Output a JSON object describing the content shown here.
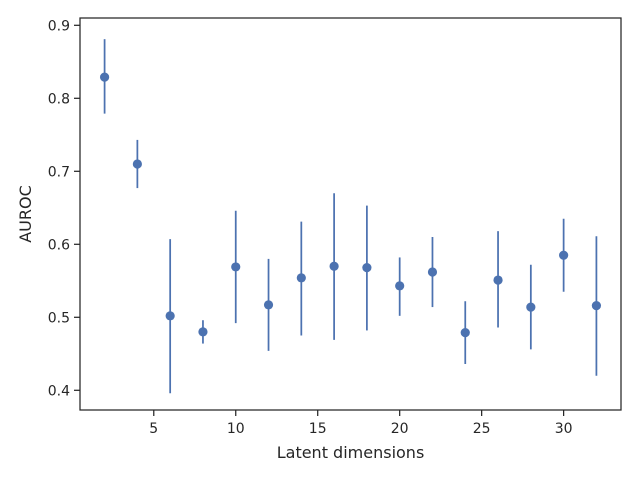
{
  "chart_data": {
    "type": "scatter",
    "title": "",
    "xlabel": "Latent dimensions",
    "ylabel": "AUROC",
    "xlim": [
      0.5,
      33.5
    ],
    "ylim": [
      0.373,
      0.91
    ],
    "grid": false,
    "xticks": [
      5,
      10,
      15,
      20,
      25,
      30
    ],
    "yticks": [
      0.4,
      0.5,
      0.6,
      0.7,
      0.8,
      0.9
    ],
    "xtick_labels": [
      "5",
      "10",
      "15",
      "20",
      "25",
      "30"
    ],
    "ytick_labels": [
      "0.4",
      "0.5",
      "0.6",
      "0.7",
      "0.8",
      "0.9"
    ],
    "series": [
      {
        "color": "#4c72b0",
        "marker": "circle",
        "error_bars": true,
        "points": [
          {
            "x": 2,
            "y": 0.829,
            "low": 0.779,
            "high": 0.881
          },
          {
            "x": 4,
            "y": 0.71,
            "low": 0.677,
            "high": 0.743
          },
          {
            "x": 6,
            "y": 0.502,
            "low": 0.396,
            "high": 0.607
          },
          {
            "x": 8,
            "y": 0.48,
            "low": 0.464,
            "high": 0.496
          },
          {
            "x": 10,
            "y": 0.569,
            "low": 0.492,
            "high": 0.646
          },
          {
            "x": 12,
            "y": 0.517,
            "low": 0.454,
            "high": 0.58
          },
          {
            "x": 14,
            "y": 0.554,
            "low": 0.475,
            "high": 0.631
          },
          {
            "x": 16,
            "y": 0.57,
            "low": 0.469,
            "high": 0.67
          },
          {
            "x": 18,
            "y": 0.568,
            "low": 0.482,
            "high": 0.653
          },
          {
            "x": 20,
            "y": 0.543,
            "low": 0.502,
            "high": 0.582
          },
          {
            "x": 22,
            "y": 0.562,
            "low": 0.514,
            "high": 0.61
          },
          {
            "x": 24,
            "y": 0.479,
            "low": 0.436,
            "high": 0.522
          },
          {
            "x": 26,
            "y": 0.551,
            "low": 0.486,
            "high": 0.618
          },
          {
            "x": 28,
            "y": 0.514,
            "low": 0.456,
            "high": 0.572
          },
          {
            "x": 30,
            "y": 0.585,
            "low": 0.535,
            "high": 0.635
          },
          {
            "x": 32,
            "y": 0.516,
            "low": 0.42,
            "high": 0.611
          }
        ]
      }
    ]
  }
}
